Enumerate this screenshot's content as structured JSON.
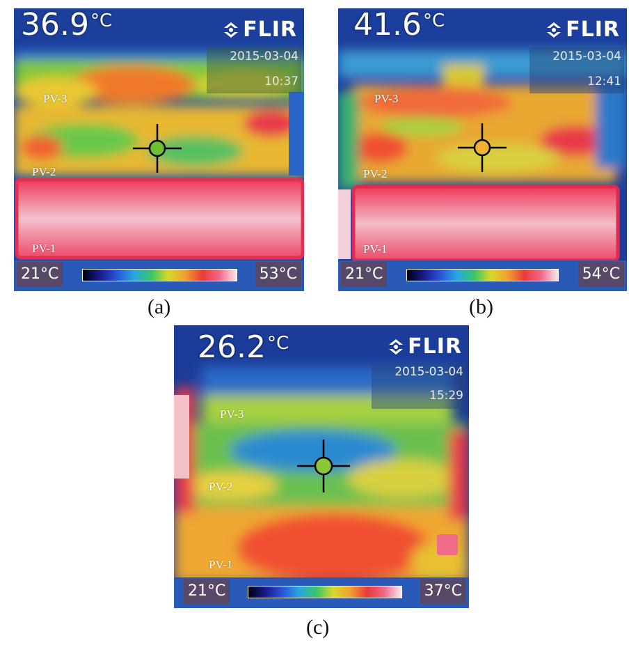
{
  "panels": [
    {
      "center_temp": "36.9",
      "unit": "°C",
      "logo": "FLIR",
      "date": "2015-03-04",
      "time": "10:37",
      "pv_labels": [
        "PV-3",
        "PV-2",
        "PV-1"
      ],
      "scale_min": "21°C",
      "scale_max": "53°C",
      "caption": "(a)"
    },
    {
      "center_temp": "41.6",
      "unit": "°C",
      "logo": "FLIR",
      "date": "2015-03-04",
      "time": "12:41",
      "pv_labels": [
        "PV-3",
        "PV-2",
        "PV-1"
      ],
      "scale_min": "21°C",
      "scale_max": "54°C",
      "caption": "(b)"
    },
    {
      "center_temp": "26.2",
      "unit": "°C",
      "logo": "FLIR",
      "date": "2015-03-04",
      "time": "15:29",
      "pv_labels": [
        "PV-3",
        "PV-2",
        "PV-1"
      ],
      "scale_min": "21°C",
      "scale_max": "37°C",
      "caption": "(c)"
    }
  ]
}
